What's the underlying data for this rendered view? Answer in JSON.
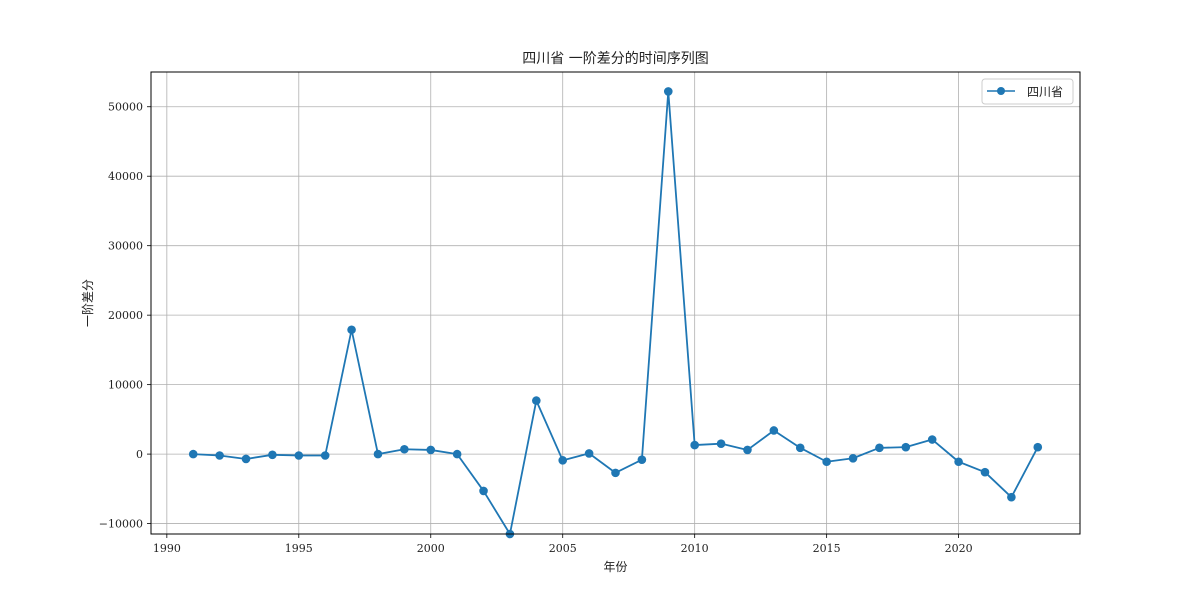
{
  "chart_data": {
    "type": "line",
    "title": "四川省 一阶差分的时间序列图",
    "xlabel": "年份",
    "ylabel": "一阶差分",
    "xlim": [
      1989.4,
      2024.6
    ],
    "ylim": [
      -11500,
      55000
    ],
    "xticks": [
      1990,
      1995,
      2000,
      2005,
      2010,
      2015,
      2020
    ],
    "yticks": [
      -10000,
      0,
      10000,
      20000,
      30000,
      40000,
      50000
    ],
    "grid": true,
    "legend_position": "top-right",
    "colors": {
      "series": "#1f77b4",
      "grid": "#b0b0b0"
    },
    "series": [
      {
        "name": "四川省",
        "marker": "circle",
        "x": [
          1991,
          1992,
          1993,
          1994,
          1995,
          1996,
          1997,
          1998,
          1999,
          2000,
          2001,
          2002,
          2003,
          2004,
          2005,
          2006,
          2007,
          2008,
          2009,
          2010,
          2011,
          2012,
          2013,
          2014,
          2015,
          2016,
          2017,
          2018,
          2019,
          2020,
          2021,
          2022,
          2023
        ],
        "values": [
          0,
          -200,
          -700,
          -100,
          -200,
          -200,
          17900,
          0,
          700,
          600,
          0,
          -5300,
          -11500,
          7700,
          -900,
          100,
          -2700,
          -800,
          52200,
          1300,
          1500,
          600,
          3400,
          900,
          -1100,
          -600,
          900,
          1000,
          2100,
          -1100,
          -2600,
          -6200,
          1000
        ]
      }
    ]
  }
}
